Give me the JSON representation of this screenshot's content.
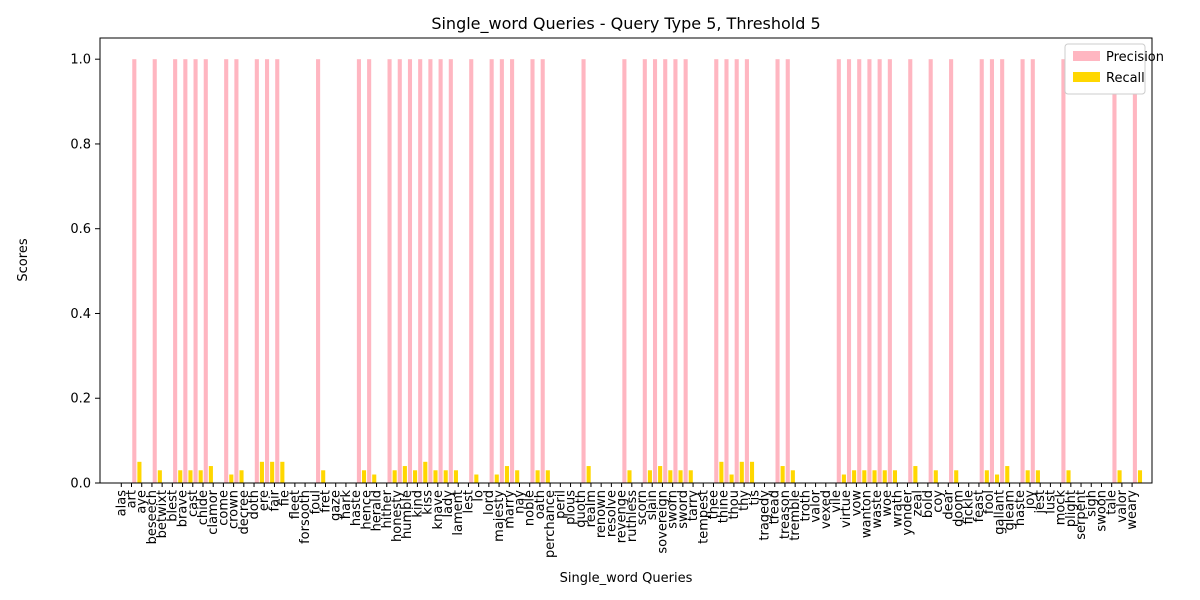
{
  "chart_data": {
    "type": "bar",
    "title": "Single_word Queries - Query Type 5, Threshold 5",
    "xlabel": "Single_word Queries",
    "ylabel": "Scores",
    "ylim": [
      0,
      1.05
    ],
    "yticks": [
      "0.0",
      "0.2",
      "0.4",
      "0.6",
      "0.8",
      "1.0"
    ],
    "legend_position": "top-right",
    "colors": {
      "precision": "#FFB6C1",
      "recall": "#FFD700"
    },
    "categories": [
      "alas",
      "art",
      "aye",
      "beseech",
      "betwixt",
      "blest",
      "brave",
      "cast",
      "chide",
      "clamor",
      "come",
      "crown",
      "decree",
      "doth",
      "ere",
      "fair",
      "fie",
      "fleet",
      "forsooth",
      "foul",
      "fret",
      "gaze",
      "hark",
      "haste",
      "hence",
      "herald",
      "hither",
      "honesty",
      "humble",
      "kind",
      "kiss",
      "knave",
      "lady",
      "lament",
      "lest",
      "lo",
      "lord",
      "majesty",
      "marry",
      "nay",
      "noble",
      "oath",
      "perchance",
      "peril",
      "plous",
      "quoth",
      "realm",
      "renown",
      "resolve",
      "revenge",
      "ruthless",
      "scorn",
      "slain",
      "sovereign",
      "sworn",
      "sword",
      "tarry",
      "tempest",
      "thee",
      "thine",
      "thou",
      "thy",
      "tis",
      "tragedy",
      "tread",
      "treason",
      "tremble",
      "troth",
      "valor",
      "vexed",
      "vile",
      "virtue",
      "vow",
      "wanton",
      "waste",
      "woe",
      "wrath",
      "yonder",
      "zeal",
      "bold",
      "coy",
      "dear",
      "doom",
      "fickle",
      "feast",
      "fool",
      "gallant",
      "gleam",
      "haste",
      "joy",
      "jest",
      "lust",
      "mock",
      "plight",
      "serpent",
      "sigh",
      "swoon",
      "tale",
      "valor",
      "weary"
    ],
    "series": [
      {
        "name": "Precision",
        "values": [
          0,
          1,
          0,
          1,
          0,
          1,
          1,
          1,
          1,
          0,
          1,
          1,
          0,
          1,
          1,
          1,
          0,
          0,
          0,
          1,
          0,
          0,
          0,
          1,
          1,
          0,
          1,
          1,
          1,
          1,
          1,
          1,
          1,
          0,
          1,
          0,
          1,
          1,
          1,
          0,
          1,
          1,
          0,
          0,
          0,
          1,
          0,
          0,
          0,
          1,
          0,
          1,
          1,
          1,
          1,
          1,
          0,
          0,
          1,
          1,
          1,
          1,
          0,
          0,
          1,
          1,
          0,
          0,
          0,
          0,
          1,
          1,
          1,
          1,
          1,
          1,
          0,
          1,
          0,
          1,
          0,
          1,
          0,
          0,
          1,
          1,
          1,
          0,
          1,
          1,
          0,
          0,
          1,
          0,
          0,
          0,
          0,
          1,
          0,
          1
        ]
      },
      {
        "name": "Recall",
        "values": [
          0,
          0.05,
          0,
          0.03,
          0,
          0.03,
          0.03,
          0.03,
          0.04,
          0,
          0.02,
          0.03,
          0,
          0.05,
          0.05,
          0.05,
          0,
          0,
          0,
          0.03,
          0,
          0,
          0,
          0.03,
          0.02,
          0,
          0.03,
          0.04,
          0.03,
          0.05,
          0.03,
          0.03,
          0.03,
          0,
          0.02,
          0,
          0.02,
          0.04,
          0.03,
          0,
          0.03,
          0.03,
          0,
          0,
          0,
          0.04,
          0,
          0,
          0,
          0.03,
          0,
          0.03,
          0.04,
          0.03,
          0.03,
          0.03,
          0,
          0,
          0.05,
          0.02,
          0.05,
          0.05,
          0,
          0,
          0.04,
          0.03,
          0,
          0,
          0,
          0,
          0.02,
          0.03,
          0.03,
          0.03,
          0.03,
          0.03,
          0,
          0.04,
          0,
          0.03,
          0,
          0.03,
          0,
          0,
          0.03,
          0.02,
          0.04,
          0,
          0.03,
          0.03,
          0,
          0,
          0.03,
          0,
          0,
          0,
          0,
          0.03,
          0,
          0.03
        ]
      }
    ]
  }
}
